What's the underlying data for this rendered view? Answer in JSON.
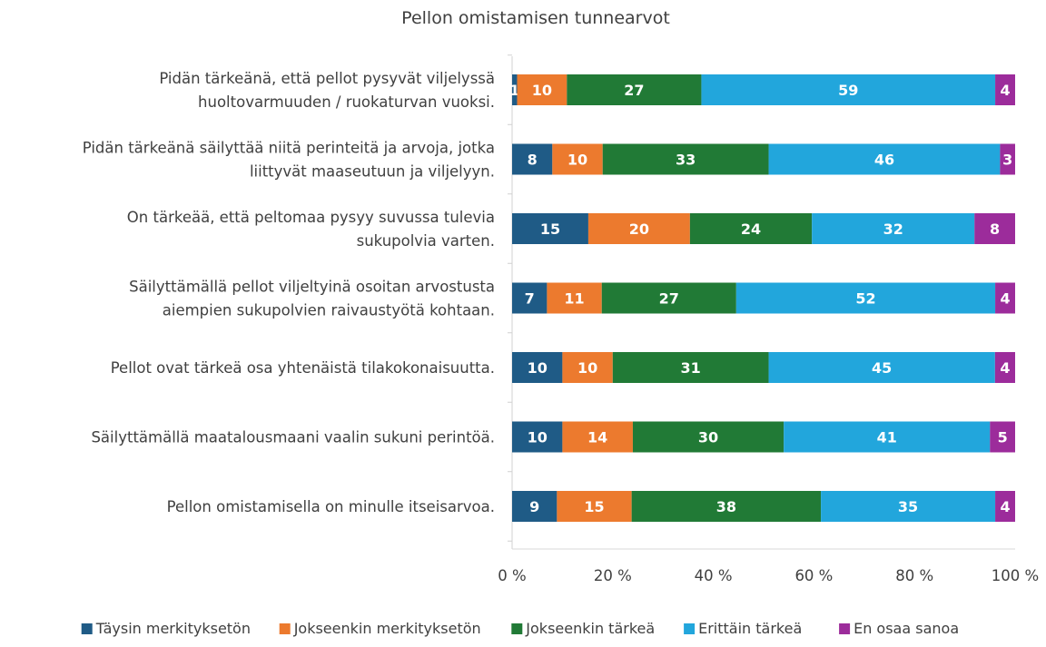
{
  "chart_data": {
    "type": "bar",
    "orientation": "horizontal",
    "stacked": "percent",
    "title": "Pellon omistamisen tunnearvot",
    "categories": [
      [
        "Pidän tärkeänä, että pellot pysyvät viljelyssä",
        "huoltovarmuuden / ruokaturvan vuoksi."
      ],
      [
        "Pidän tärkeänä säilyttää niitä perinteitä ja arvoja, jotka",
        "liittyvät maaseutuun ja viljelyyn."
      ],
      [
        "On tärkeää, että peltomaa pysyy suvussa tulevia",
        "sukupolvia varten."
      ],
      [
        "Säilyttämällä pellot viljeltyinä osoitan arvostusta",
        "aiempien sukupolvien raivaustyötä kohtaan."
      ],
      [
        "Pellot ovat tärkeä osa yhtenäistä tilakokonaisuutta."
      ],
      [
        "Säilyttämällä maatalousmaani vaalin sukuni perintöä."
      ],
      [
        "Pellon omistamisella on minulle itseisarvoa."
      ]
    ],
    "series": [
      {
        "name": "Täysin merkityksetön",
        "color": "#1f5b86",
        "values": [
          1,
          8,
          15,
          7,
          10,
          10,
          9
        ]
      },
      {
        "name": "Jokseenkin merkityksetön",
        "color": "#ec7a2e",
        "values": [
          10,
          10,
          20,
          11,
          10,
          14,
          15
        ]
      },
      {
        "name": "Jokseenkin tärkeä",
        "color": "#217a36",
        "values": [
          27,
          33,
          24,
          27,
          31,
          30,
          38
        ]
      },
      {
        "name": "Erittäin tärkeä",
        "color": "#22a6dc",
        "values": [
          59,
          46,
          32,
          52,
          45,
          41,
          35
        ]
      },
      {
        "name": "En osaa sanoa",
        "color": "#9c2c9b",
        "values": [
          4,
          3,
          8,
          4,
          4,
          5,
          4
        ]
      }
    ],
    "x_ticks": [
      "0 %",
      "20 %",
      "40 %",
      "60 %",
      "80 %",
      "100 %"
    ],
    "xlim": [
      0,
      100
    ],
    "legend_position": "bottom",
    "grid": false
  }
}
